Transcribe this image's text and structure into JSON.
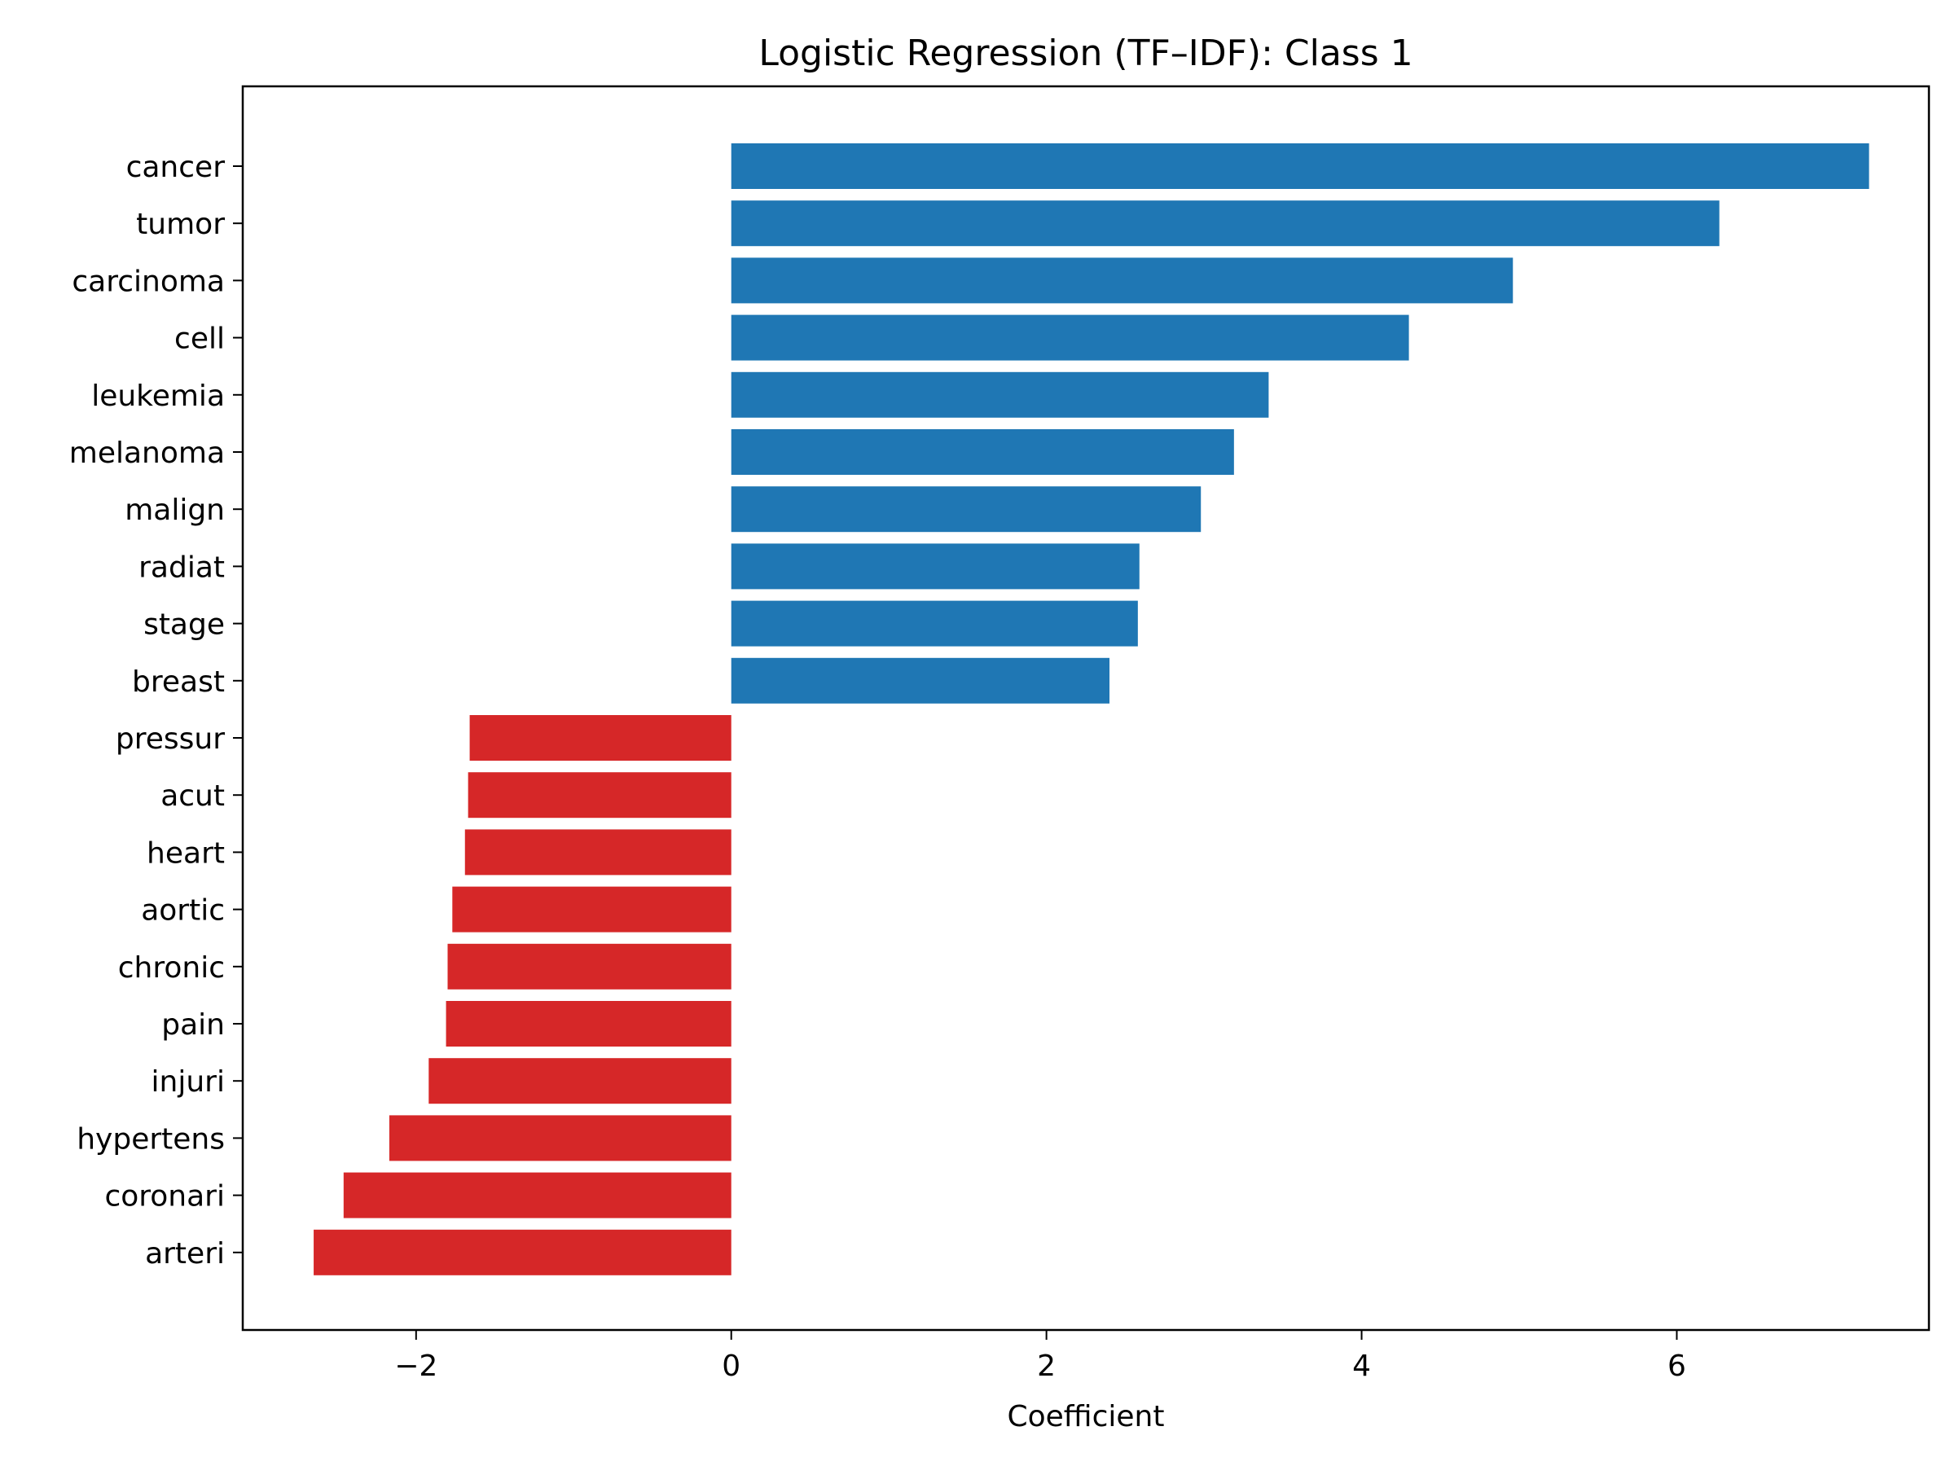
{
  "chart_data": {
    "type": "bar",
    "orientation": "horizontal",
    "title": "Logistic Regression (TF–IDF): Class 1",
    "xlabel": "Coefficient",
    "ylabel": "",
    "xlim": [
      -3.1,
      7.6
    ],
    "xticks": [
      -2,
      0,
      2,
      4,
      6
    ],
    "xtick_labels": [
      "−2",
      "0",
      "2",
      "4",
      "6"
    ],
    "grid": false,
    "legend": "none",
    "categories": [
      "cancer",
      "tumor",
      "carcinoma",
      "cell",
      "leukemia",
      "melanoma",
      "malign",
      "radiat",
      "stage",
      "breast",
      "pressur",
      "acut",
      "heart",
      "aortic",
      "chronic",
      "pain",
      "injuri",
      "hypertens",
      "coronari",
      "arteri"
    ],
    "values": [
      7.22,
      6.27,
      4.96,
      4.3,
      3.41,
      3.19,
      2.98,
      2.59,
      2.58,
      2.4,
      -1.66,
      -1.67,
      -1.69,
      -1.77,
      -1.8,
      -1.81,
      -1.92,
      -2.17,
      -2.46,
      -2.65
    ],
    "colors": {
      "positive": "#1f77b4",
      "negative": "#d62728"
    }
  }
}
